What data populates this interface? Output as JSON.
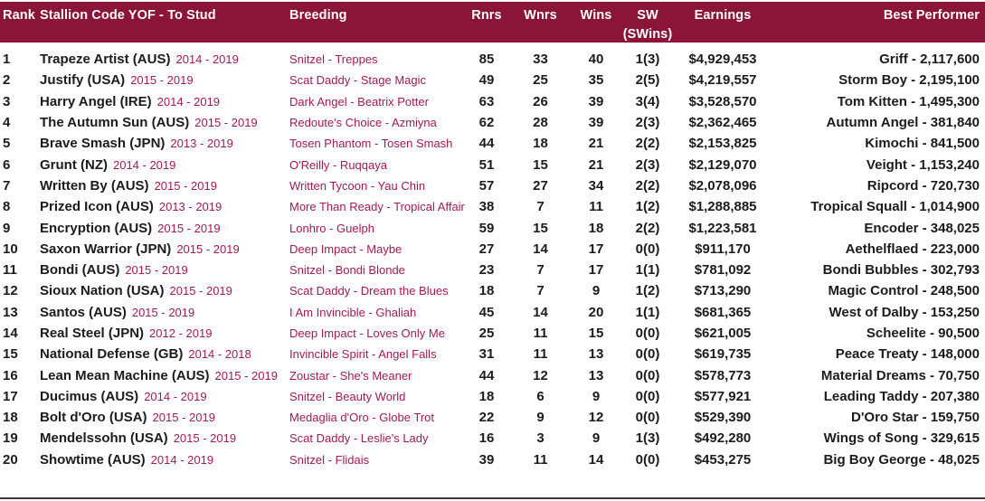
{
  "colors": {
    "header_bg": "#8A1538",
    "header_text": "#FFFFFF",
    "accent_text": "#A11C4F",
    "body_text": "#1C1C1C",
    "bottom_rule": "#3A3A3A"
  },
  "table": {
    "columns": {
      "rank": "Rank",
      "stallion": "Stallion Code YOF - To Stud",
      "breeding": "Breeding",
      "rnrs": "Rnrs",
      "wnrs": "Wnrs",
      "wins": "Wins",
      "sw": "SW",
      "sw_sub": "(SWins)",
      "earnings": "Earnings",
      "best": "Best Performer"
    },
    "rows": [
      {
        "rank": "1",
        "name": "Trapeze Artist (AUS)",
        "years": "2014 - 2019",
        "breeding": "Snitzel - Treppes",
        "rnrs": "85",
        "wnrs": "33",
        "wins": "40",
        "sw": "1(3)",
        "earnings": "$4,929,453",
        "best": "Griff - 2,117,600"
      },
      {
        "rank": "2",
        "name": "Justify (USA)",
        "years": "2015 - 2019",
        "breeding": "Scat Daddy - Stage Magic",
        "rnrs": "49",
        "wnrs": "25",
        "wins": "35",
        "sw": "2(5)",
        "earnings": "$4,219,557",
        "best": "Storm Boy - 2,195,100"
      },
      {
        "rank": "3",
        "name": "Harry Angel (IRE)",
        "years": "2014 - 2019",
        "breeding": "Dark Angel - Beatrix Potter",
        "rnrs": "63",
        "wnrs": "26",
        "wins": "39",
        "sw": "3(4)",
        "earnings": "$3,528,570",
        "best": "Tom Kitten - 1,495,300"
      },
      {
        "rank": "4",
        "name": "The Autumn Sun (AUS)",
        "years": "2015 - 2019",
        "breeding": "Redoute's Choice - Azmiyna",
        "rnrs": "62",
        "wnrs": "28",
        "wins": "39",
        "sw": "2(3)",
        "earnings": "$2,362,465",
        "best": "Autumn Angel - 381,840"
      },
      {
        "rank": "5",
        "name": "Brave Smash (JPN)",
        "years": "2013 - 2019",
        "breeding": "Tosen Phantom - Tosen Smash",
        "rnrs": "44",
        "wnrs": "18",
        "wins": "21",
        "sw": "2(2)",
        "earnings": "$2,153,825",
        "best": "Kimochi - 841,500"
      },
      {
        "rank": "6",
        "name": "Grunt (NZ)",
        "years": "2014 - 2019",
        "breeding": "O'Reilly - Ruqqaya",
        "rnrs": "51",
        "wnrs": "15",
        "wins": "21",
        "sw": "2(3)",
        "earnings": "$2,129,070",
        "best": "Veight - 1,153,240"
      },
      {
        "rank": "7",
        "name": "Written By (AUS)",
        "years": "2015 - 2019",
        "breeding": "Written Tycoon - Yau Chin",
        "rnrs": "57",
        "wnrs": "27",
        "wins": "34",
        "sw": "2(2)",
        "earnings": "$2,078,096",
        "best": "Ripcord - 720,730"
      },
      {
        "rank": "8",
        "name": "Prized Icon (AUS)",
        "years": "2013 - 2019",
        "breeding": "More Than Ready - Tropical Affair",
        "rnrs": "38",
        "wnrs": "7",
        "wins": "11",
        "sw": "1(2)",
        "earnings": "$1,288,885",
        "best": "Tropical Squall - 1,014,900"
      },
      {
        "rank": "9",
        "name": "Encryption (AUS)",
        "years": "2015 - 2019",
        "breeding": "Lonhro - Guelph",
        "rnrs": "59",
        "wnrs": "15",
        "wins": "18",
        "sw": "2(2)",
        "earnings": "$1,223,581",
        "best": "Encoder - 348,025"
      },
      {
        "rank": "10",
        "name": "Saxon Warrior (JPN)",
        "years": "2015 - 2019",
        "breeding": "Deep Impact - Maybe",
        "rnrs": "27",
        "wnrs": "14",
        "wins": "17",
        "sw": "0(0)",
        "earnings": "$911,170",
        "best": "Aethelflaed - 223,000"
      },
      {
        "rank": "11",
        "name": "Bondi (AUS)",
        "years": "2015 - 2019",
        "breeding": "Snitzel - Bondi Blonde",
        "rnrs": "23",
        "wnrs": "7",
        "wins": "17",
        "sw": "1(1)",
        "earnings": "$781,092",
        "best": "Bondi Bubbles - 302,793"
      },
      {
        "rank": "12",
        "name": "Sioux Nation (USA)",
        "years": "2015 - 2019",
        "breeding": "Scat Daddy - Dream the Blues",
        "rnrs": "18",
        "wnrs": "7",
        "wins": "9",
        "sw": "1(2)",
        "earnings": "$713,290",
        "best": "Magic Control - 248,500"
      },
      {
        "rank": "13",
        "name": "Santos (AUS)",
        "years": "2015 - 2019",
        "breeding": "I Am Invincible - Ghaliah",
        "rnrs": "45",
        "wnrs": "14",
        "wins": "20",
        "sw": "1(1)",
        "earnings": "$681,365",
        "best": "West of Dalby - 153,250"
      },
      {
        "rank": "14",
        "name": "Real Steel (JPN)",
        "years": "2012 - 2019",
        "breeding": "Deep Impact - Loves Only Me",
        "rnrs": "25",
        "wnrs": "11",
        "wins": "15",
        "sw": "0(0)",
        "earnings": "$621,005",
        "best": "Scheelite - 90,500"
      },
      {
        "rank": "15",
        "name": "National Defense (GB)",
        "years": "2014 - 2018",
        "breeding": "Invincible Spirit - Angel Falls",
        "rnrs": "31",
        "wnrs": "11",
        "wins": "13",
        "sw": "0(0)",
        "earnings": "$619,735",
        "best": "Peace Treaty - 148,000"
      },
      {
        "rank": "16",
        "name": "Lean Mean Machine (AUS)",
        "years": "2015 - 2019",
        "breeding": "Zoustar - She's Meaner",
        "rnrs": "44",
        "wnrs": "12",
        "wins": "13",
        "sw": "0(0)",
        "earnings": "$578,773",
        "best": "Material Dreams - 70,750"
      },
      {
        "rank": "17",
        "name": "Ducimus (AUS)",
        "years": "2014 - 2019",
        "breeding": "Snitzel - Beauty World",
        "rnrs": "18",
        "wnrs": "6",
        "wins": "9",
        "sw": "0(0)",
        "earnings": "$577,921",
        "best": "Leading Taddy - 207,380"
      },
      {
        "rank": "18",
        "name": "Bolt d'Oro (USA)",
        "years": "2015 - 2019",
        "breeding": "Medaglia d'Oro - Globe Trot",
        "rnrs": "22",
        "wnrs": "9",
        "wins": "12",
        "sw": "0(0)",
        "earnings": "$529,390",
        "best": "D'Oro Star - 159,750"
      },
      {
        "rank": "19",
        "name": "Mendelssohn (USA)",
        "years": "2015 - 2019",
        "breeding": "Scat Daddy - Leslie's Lady",
        "rnrs": "16",
        "wnrs": "3",
        "wins": "9",
        "sw": "1(3)",
        "earnings": "$492,280",
        "best": "Wings of Song - 329,615"
      },
      {
        "rank": "20",
        "name": "Showtime (AUS)",
        "years": "2014 - 2019",
        "breeding": "Snitzel - Flidais",
        "rnrs": "39",
        "wnrs": "11",
        "wins": "14",
        "sw": "0(0)",
        "earnings": "$453,275",
        "best": "Big Boy George - 48,025"
      }
    ]
  }
}
